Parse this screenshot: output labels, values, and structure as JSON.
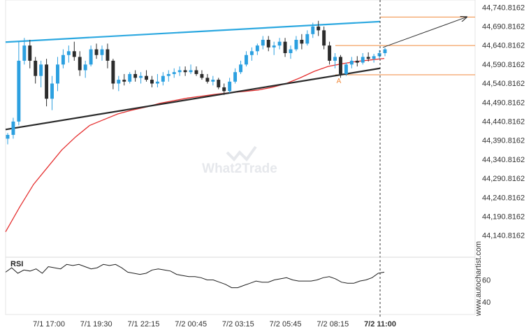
{
  "chart_data": {
    "type": "candlestick",
    "price_axis": {
      "min": 44120,
      "max": 44745,
      "tick_labels": [
        "44,740.8162",
        "44,690.8162",
        "44,640.8162",
        "44,590.8162",
        "44,540.8162",
        "44,490.8162",
        "44,440.8162",
        "44,390.8162",
        "44,340.8162",
        "44,290.8162",
        "44,240.8162",
        "44,190.8162",
        "44,140.8162"
      ]
    },
    "time_axis": {
      "labels": [
        "7/1 17:00",
        "7/1 19:30",
        "7/1 22:15",
        "7/2 00:45",
        "7/2 03:15",
        "7/2 05:45",
        "7/2 08:15",
        "7/2 11:00"
      ],
      "highlighted": "7/2 11:00"
    },
    "candles": [
      [
        44395,
        44410,
        44380,
        44405
      ],
      [
        44405,
        44450,
        44395,
        44440
      ],
      [
        44440,
        44650,
        44430,
        44600
      ],
      [
        44600,
        44660,
        44590,
        44640
      ],
      [
        44640,
        44655,
        44580,
        44600
      ],
      [
        44600,
        44610,
        44540,
        44560
      ],
      [
        44560,
        44600,
        44530,
        44590
      ],
      [
        44590,
        44605,
        44480,
        44500
      ],
      [
        44500,
        44560,
        44470,
        44540
      ],
      [
        44540,
        44610,
        44520,
        44590
      ],
      [
        44590,
        44630,
        44580,
        44615
      ],
      [
        44615,
        44640,
        44595,
        44625
      ],
      [
        44625,
        44650,
        44600,
        44610
      ],
      [
        44610,
        44625,
        44560,
        44575
      ],
      [
        44575,
        44600,
        44555,
        44590
      ],
      [
        44590,
        44640,
        44585,
        44630
      ],
      [
        44630,
        44645,
        44605,
        44615
      ],
      [
        44615,
        44640,
        44600,
        44630
      ],
      [
        44630,
        44645,
        44580,
        44600
      ],
      [
        44600,
        44605,
        44525,
        44540
      ],
      [
        44540,
        44560,
        44520,
        44550
      ],
      [
        44550,
        44565,
        44535,
        44545
      ],
      [
        44545,
        44570,
        44540,
        44565
      ],
      [
        44565,
        44575,
        44545,
        44555
      ],
      [
        44555,
        44570,
        44540,
        44560
      ],
      [
        44560,
        44575,
        44545,
        44550
      ],
      [
        44550,
        44560,
        44530,
        44540
      ],
      [
        44540,
        44565,
        44530,
        44545
      ],
      [
        44545,
        44570,
        44535,
        44560
      ],
      [
        44560,
        44575,
        44545,
        44565
      ],
      [
        44565,
        44580,
        44555,
        44570
      ],
      [
        44570,
        44585,
        44560,
        44575
      ],
      [
        44575,
        44585,
        44560,
        44570
      ],
      [
        44570,
        44590,
        44565,
        44575
      ],
      [
        44575,
        44585,
        44560,
        44565
      ],
      [
        44565,
        44575,
        44550,
        44555
      ],
      [
        44555,
        44565,
        44540,
        44545
      ],
      [
        44545,
        44560,
        44535,
        44550
      ],
      [
        44550,
        44555,
        44525,
        44530
      ],
      [
        44530,
        44540,
        44510,
        44520
      ],
      [
        44520,
        44555,
        44515,
        44545
      ],
      [
        44545,
        44580,
        44540,
        44570
      ],
      [
        44570,
        44600,
        44565,
        44590
      ],
      [
        44590,
        44625,
        44585,
        44615
      ],
      [
        44615,
        44635,
        44600,
        44625
      ],
      [
        44625,
        44645,
        44615,
        44640
      ],
      [
        44640,
        44665,
        44630,
        44655
      ],
      [
        44655,
        44665,
        44625,
        44635
      ],
      [
        44635,
        44650,
        44615,
        44640
      ],
      [
        44640,
        44660,
        44630,
        44650
      ],
      [
        44650,
        44660,
        44610,
        44620
      ],
      [
        44620,
        44640,
        44605,
        44630
      ],
      [
        44630,
        44665,
        44625,
        44655
      ],
      [
        44655,
        44670,
        44630,
        44645
      ],
      [
        44645,
        44680,
        44640,
        44670
      ],
      [
        44670,
        44700,
        44660,
        44690
      ],
      [
        44690,
        44705,
        44665,
        44680
      ],
      [
        44680,
        44690,
        44630,
        44640
      ],
      [
        44640,
        44650,
        44590,
        44600
      ],
      [
        44600,
        44620,
        44580,
        44610
      ],
      [
        44610,
        44615,
        44555,
        44565
      ],
      [
        44565,
        44595,
        44560,
        44590
      ],
      [
        44590,
        44610,
        44580,
        44600
      ],
      [
        44600,
        44612,
        44585,
        44595
      ],
      [
        44595,
        44620,
        44590,
        44610
      ],
      [
        44610,
        44622,
        44598,
        44605
      ],
      [
        44605,
        44618,
        44595,
        44612
      ],
      [
        44612,
        44628,
        44605,
        44620
      ],
      [
        44620,
        44635,
        44612,
        44630
      ]
    ],
    "lines": {
      "resistance": [
        [
          0,
          44649
        ],
        [
          1,
          44703
        ]
      ],
      "support": [
        [
          0,
          44419
        ],
        [
          1,
          44580
        ]
      ],
      "ma": [
        44150,
        44215,
        44275,
        44320,
        44365,
        44400,
        44430,
        44445,
        44460,
        44470,
        44478,
        44488,
        44495,
        44502,
        44507,
        44512,
        44516,
        44519,
        44523,
        44530,
        44540,
        44555,
        44572,
        44585,
        44592,
        44598,
        44602,
        44606
      ]
    },
    "projection": {
      "from_price": 44635,
      "to_price": 44715
    },
    "levels": [
      44715,
      44640,
      44563
    ],
    "pattern_marker": {
      "label": "A",
      "price": 44548
    },
    "rsi": {
      "label": "RSI",
      "ticks": [
        60,
        40
      ],
      "range": [
        30,
        78
      ],
      "values": [
        67,
        71,
        66,
        69,
        68,
        70,
        66,
        72,
        71,
        70,
        74,
        73,
        74,
        72,
        70,
        71,
        74,
        73,
        74,
        71,
        67,
        66,
        65,
        66,
        69,
        70,
        69,
        68,
        65,
        64,
        63,
        63,
        62,
        60,
        60,
        58,
        56,
        53,
        53,
        55,
        57,
        59,
        58,
        58,
        60,
        61,
        62,
        60,
        59,
        59,
        59,
        60,
        62,
        63,
        61,
        58,
        57,
        57,
        59,
        60,
        62,
        66,
        67
      ]
    },
    "colors": {
      "bull": "#2ca0e0",
      "bear": "#2c2c2c",
      "resistance": "#2ca8e0",
      "support": "#2a2a2a",
      "ma": "#e53030",
      "level": "#f08a3c",
      "projection": "#333333"
    }
  },
  "watermark": "What2Trade",
  "brand_text": "www.autochartist.com"
}
